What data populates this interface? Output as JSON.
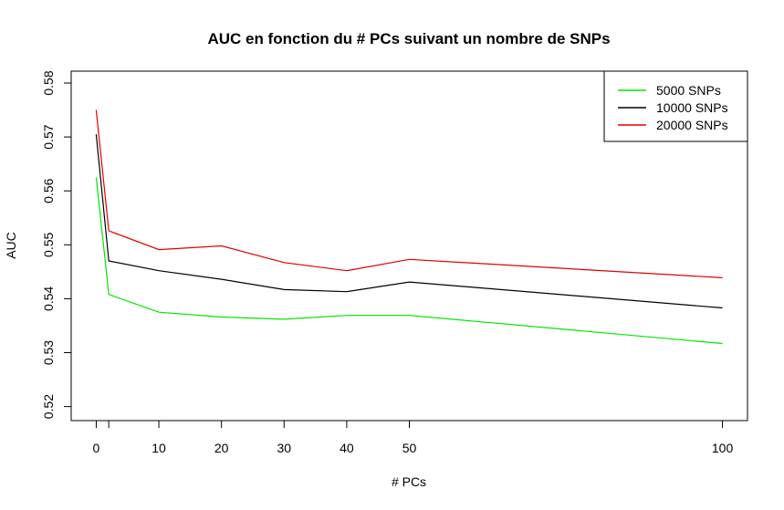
{
  "chart_data": {
    "type": "line",
    "title": "AUC en fonction du # PCs suivant un nombre de SNPs",
    "xlabel": "# PCs",
    "ylabel": "AUC",
    "x": [
      0,
      2,
      10,
      20,
      30,
      40,
      50,
      100
    ],
    "xticks": [
      0,
      2,
      10,
      20,
      30,
      40,
      50,
      100
    ],
    "xtick_labels": [
      "0",
      "",
      "10",
      "20",
      "30",
      "40",
      "50",
      "100"
    ],
    "yticks": [
      0.52,
      0.53,
      0.54,
      0.55,
      0.56,
      0.57,
      0.58
    ],
    "ytick_labels": [
      "0.52",
      "0.53",
      "0.54",
      "0.55",
      "0.56",
      "0.57",
      "0.58"
    ],
    "xlim": [
      -4.0,
      104.0
    ],
    "ylim": [
      0.5174,
      0.5822
    ],
    "grid": false,
    "legend_position": "top-right",
    "series": [
      {
        "name": "5000 SNPs",
        "color": "#00e600",
        "values": [
          0.5625,
          0.5408,
          0.5375,
          0.5366,
          0.5362,
          0.5369,
          0.5369,
          0.5317
        ]
      },
      {
        "name": "10000 SNPs",
        "color": "#000000",
        "values": [
          0.5705,
          0.547,
          0.5452,
          0.5436,
          0.5417,
          0.5413,
          0.5431,
          0.5383
        ]
      },
      {
        "name": "20000 SNPs",
        "color": "#e00000",
        "values": [
          0.575,
          0.5526,
          0.5491,
          0.5498,
          0.5467,
          0.5452,
          0.5473,
          0.5439
        ]
      }
    ]
  }
}
